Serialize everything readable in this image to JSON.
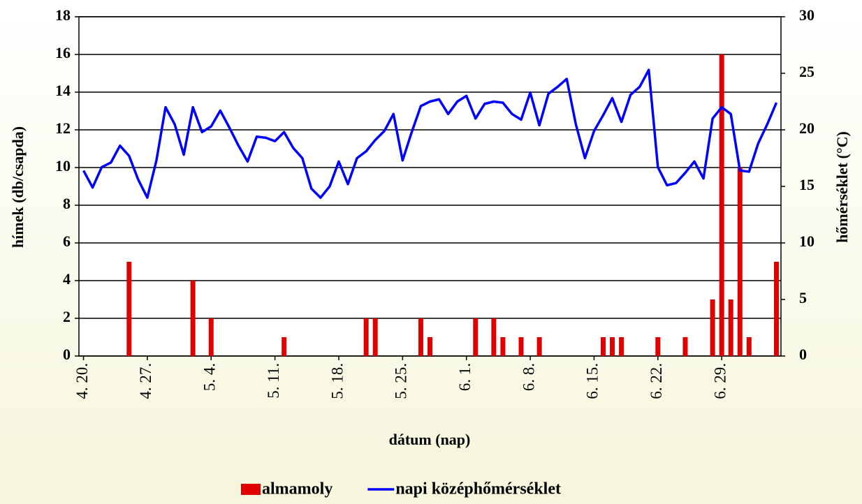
{
  "chart_data": {
    "type": "bar",
    "xlabel": "dátum (nap)",
    "ylabel": "hímek (db/csapda)",
    "y2label": "hőmérséklet (°C)",
    "categories": [
      "4. 20.",
      null,
      null,
      null,
      null,
      null,
      null,
      "4. 27.",
      null,
      null,
      null,
      null,
      null,
      null,
      "5. 4.",
      null,
      null,
      null,
      null,
      null,
      null,
      "5. 11.",
      null,
      null,
      null,
      null,
      null,
      null,
      "5. 18.",
      null,
      null,
      null,
      null,
      null,
      null,
      "5. 25.",
      null,
      null,
      null,
      null,
      null,
      null,
      "6. 1.",
      null,
      null,
      null,
      null,
      null,
      null,
      "6. 8.",
      null,
      null,
      null,
      null,
      null,
      null,
      "6. 15.",
      null,
      null,
      null,
      null,
      null,
      null,
      "6. 22.",
      null,
      null,
      null,
      null,
      null,
      null,
      "6. 29.",
      null,
      null,
      null,
      null,
      null,
      null
    ],
    "series": [
      {
        "name": "almamoly",
        "type": "bar",
        "color": "#e00000",
        "values": [
          0,
          0,
          0,
          0,
          0,
          5,
          0,
          0,
          0,
          0,
          0,
          0,
          4,
          0,
          2,
          0,
          0,
          0,
          0,
          0,
          0,
          0,
          1,
          0,
          0,
          0,
          0,
          0,
          0,
          0,
          0,
          2,
          2,
          0,
          0,
          0,
          0,
          2,
          1,
          0,
          0,
          0,
          0,
          2,
          0,
          2,
          1,
          0,
          1,
          0,
          1,
          0,
          0,
          0,
          0,
          0,
          0,
          1,
          1,
          1,
          0,
          0,
          0,
          1,
          0,
          0,
          1,
          0,
          0,
          3,
          16,
          3,
          10,
          1,
          0,
          0,
          5
        ]
      },
      {
        "name": "napi középhőmérséklet",
        "type": "line",
        "axis": "y2",
        "color": "#0000ff",
        "values": [
          16.4,
          14.9,
          16.7,
          17.1,
          18.6,
          17.7,
          15.6,
          14.0,
          17.3,
          22.0,
          20.5,
          17.8,
          22.0,
          19.8,
          20.3,
          21.7,
          20.2,
          18.6,
          17.2,
          19.4,
          19.3,
          19.0,
          19.8,
          18.4,
          17.5,
          14.8,
          14.0,
          15.0,
          17.2,
          15.2,
          17.5,
          18.1,
          19.1,
          19.9,
          21.4,
          17.3,
          19.8,
          22.1,
          22.5,
          22.7,
          21.4,
          22.5,
          23.0,
          21.0,
          22.3,
          22.5,
          22.4,
          21.4,
          20.9,
          23.3,
          20.4,
          23.2,
          23.8,
          24.5,
          20.5,
          17.5,
          19.9,
          21.3,
          22.8,
          20.7,
          23.1,
          23.8,
          25.3,
          16.7,
          15.1,
          15.3,
          16.2,
          17.2,
          15.7,
          21.0,
          22.0,
          21.4,
          16.4,
          16.3,
          18.8,
          20.5,
          22.4
        ]
      }
    ],
    "ylim": [
      0,
      18
    ],
    "yticks": [
      0,
      2,
      4,
      6,
      8,
      10,
      12,
      14,
      16,
      18
    ],
    "y2lim": [
      0,
      30
    ],
    "y2ticks": [
      0,
      5,
      10,
      15,
      20,
      25,
      30
    ],
    "grid": true,
    "legend": "bottom"
  }
}
